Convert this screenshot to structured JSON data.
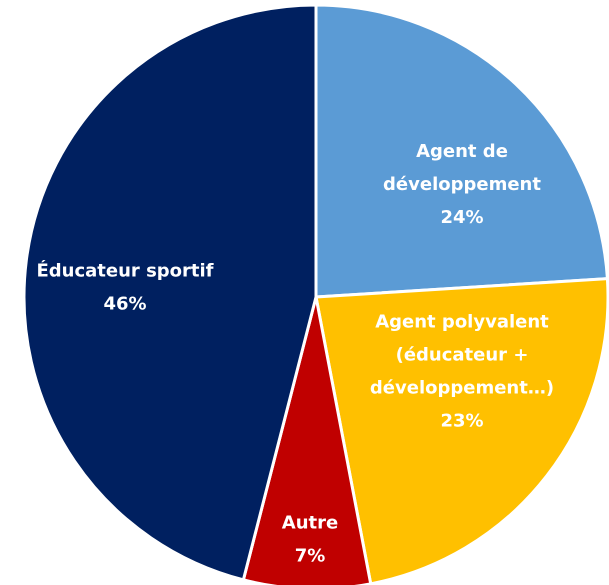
{
  "chart_data": {
    "type": "pie",
    "labels": [
      [
        "Agent de",
        "développement"
      ],
      [
        "Agent polyvalent",
        "(éducateur +",
        "développement…)"
      ],
      [
        "Autre"
      ],
      [
        "Éducateur sportif"
      ]
    ],
    "values": [
      24,
      23,
      7,
      46
    ],
    "value_labels": [
      "24%",
      "23%",
      "7%",
      "46%"
    ],
    "colors": [
      "#5b9bd5",
      "#ffc000",
      "#c00000",
      "#002060"
    ]
  }
}
